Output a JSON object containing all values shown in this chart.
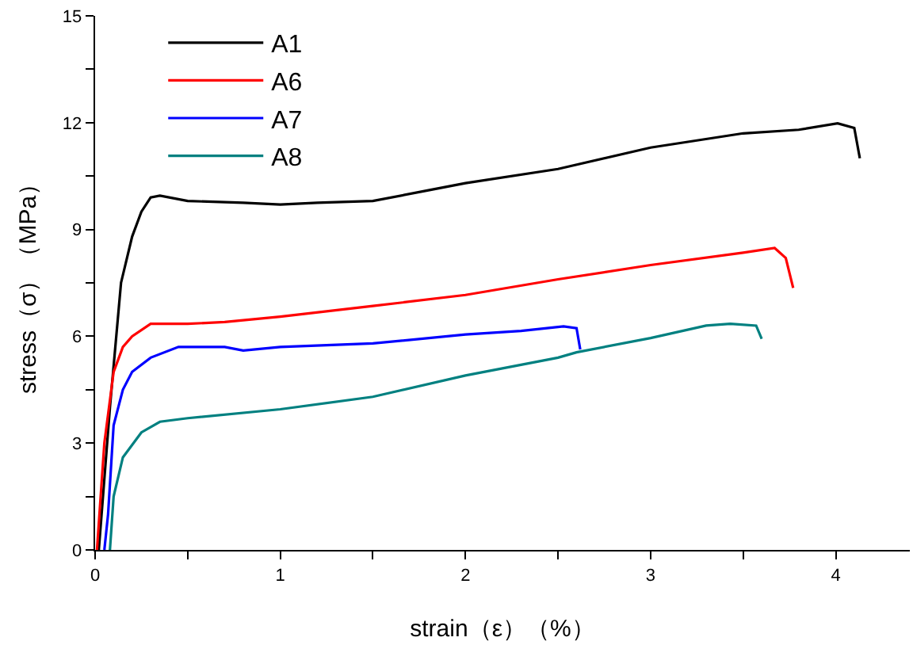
{
  "chart_data": {
    "type": "line",
    "xlabel": "strain（ε）（%）",
    "ylabel": "stress（σ）（MPa）",
    "xlim": [
      0,
      4.4
    ],
    "ylim": [
      0,
      15
    ],
    "xticks": [
      0,
      {
        "value": 0.5,
        "label": null
      },
      1,
      {
        "value": 1.5,
        "label": null
      },
      2,
      {
        "value": 2.5,
        "label": null
      },
      3,
      {
        "value": 3.5,
        "label": null
      },
      4
    ],
    "yticks": [
      0,
      {
        "value": 1.5,
        "label": null
      },
      3,
      {
        "value": 4.5,
        "label": null
      },
      6,
      {
        "value": 7.5,
        "label": null
      },
      9,
      {
        "value": 10.5,
        "label": null
      },
      12,
      {
        "value": 13.5,
        "label": null
      },
      15
    ],
    "legend": "top left",
    "marker": "none",
    "line_style": "solid",
    "series": [
      {
        "name": "A1",
        "color": "#000000",
        "x": [
          0.02,
          0.08,
          0.14,
          0.2,
          0.25,
          0.3,
          0.35,
          0.5,
          0.8,
          1.0,
          1.2,
          1.5,
          1.8,
          2.0,
          2.5,
          3.0,
          3.5,
          3.8,
          4.01,
          4.1,
          4.13
        ],
        "values": [
          0,
          4,
          7.5,
          8.8,
          9.5,
          9.9,
          9.95,
          9.8,
          9.75,
          9.7,
          9.75,
          9.8,
          10.1,
          10.3,
          10.7,
          11.3,
          11.7,
          11.8,
          11.98,
          11.85,
          11.0
        ]
      },
      {
        "name": "A6",
        "color": "#ff0000",
        "x": [
          0.01,
          0.05,
          0.1,
          0.15,
          0.2,
          0.3,
          0.5,
          0.7,
          1.0,
          1.5,
          2.0,
          2.5,
          3.0,
          3.5,
          3.67,
          3.73,
          3.77
        ],
        "values": [
          0,
          3,
          5,
          5.7,
          6.0,
          6.35,
          6.35,
          6.4,
          6.55,
          6.85,
          7.16,
          7.6,
          8.0,
          8.35,
          8.48,
          8.2,
          7.36
        ]
      },
      {
        "name": "A7",
        "color": "#0000ff",
        "x": [
          0.05,
          0.07,
          0.1,
          0.15,
          0.2,
          0.3,
          0.45,
          0.7,
          0.8,
          1.0,
          1.5,
          2.0,
          2.3,
          2.53,
          2.6,
          2.62
        ],
        "values": [
          0,
          1,
          3.5,
          4.5,
          5.0,
          5.4,
          5.7,
          5.7,
          5.6,
          5.7,
          5.8,
          6.05,
          6.15,
          6.28,
          6.23,
          5.63
        ]
      },
      {
        "name": "A8",
        "color": "#008080",
        "x": [
          0.08,
          0.1,
          0.15,
          0.25,
          0.35,
          0.5,
          1.0,
          1.5,
          2.0,
          2.5,
          2.6,
          3.0,
          3.3,
          3.43,
          3.57,
          3.6
        ],
        "values": [
          0,
          1.5,
          2.6,
          3.3,
          3.6,
          3.7,
          3.95,
          4.3,
          4.9,
          5.4,
          5.55,
          5.95,
          6.3,
          6.35,
          6.3,
          5.93
        ]
      }
    ]
  }
}
